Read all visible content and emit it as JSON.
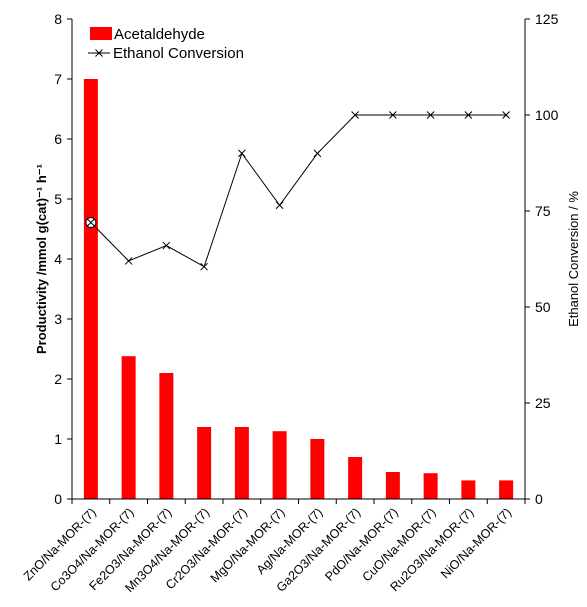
{
  "chart_data": {
    "type": "bar+line",
    "categories": [
      "ZnO/Na-MOR-(7)",
      "Co3O4/Na-MOR-(7)",
      "Fe2O3/Na-MOR-(7)",
      "Mn3O4/Na-MOR-(7)",
      "Cr2O3/Na-MOR-(7)",
      "MgO/Na-MOR-(7)",
      "Ag/Na-MOR-(7)",
      "Ga2O3/Na-MOR-(7)",
      "PdO/Na-MOR-(7)",
      "CuO/Na-MOR-(7)",
      "Ru2O3/Na-MOR-(7)",
      "NiO/Na-MOR-(7)"
    ],
    "series": [
      {
        "name": "Acetaldehyde",
        "type": "bar",
        "axis": "left",
        "color": "#ff0000",
        "values": [
          7.0,
          2.38,
          2.1,
          1.2,
          1.2,
          1.13,
          1.0,
          0.7,
          0.45,
          0.43,
          0.31,
          0.31
        ]
      },
      {
        "name": "Ethanol Conversion",
        "type": "line",
        "axis": "right",
        "color": "#000000",
        "marker": "x",
        "values": [
          72,
          62,
          66,
          60.5,
          90,
          76.5,
          90,
          100,
          100,
          100,
          100,
          100
        ]
      }
    ],
    "ylabel_left": "Productivity /mmol g(cat)⁻¹ h⁻¹",
    "ylabel_right": "Ethanol Conversion / %",
    "ylim_left": [
      0,
      8
    ],
    "ylim_right": [
      0,
      125
    ],
    "yticks_left": [
      0,
      1,
      2,
      3,
      4,
      5,
      6,
      7,
      8
    ],
    "yticks_right": [
      0,
      25,
      50,
      75,
      100,
      125
    ],
    "legend_placement": "top-left",
    "grid": false
  }
}
